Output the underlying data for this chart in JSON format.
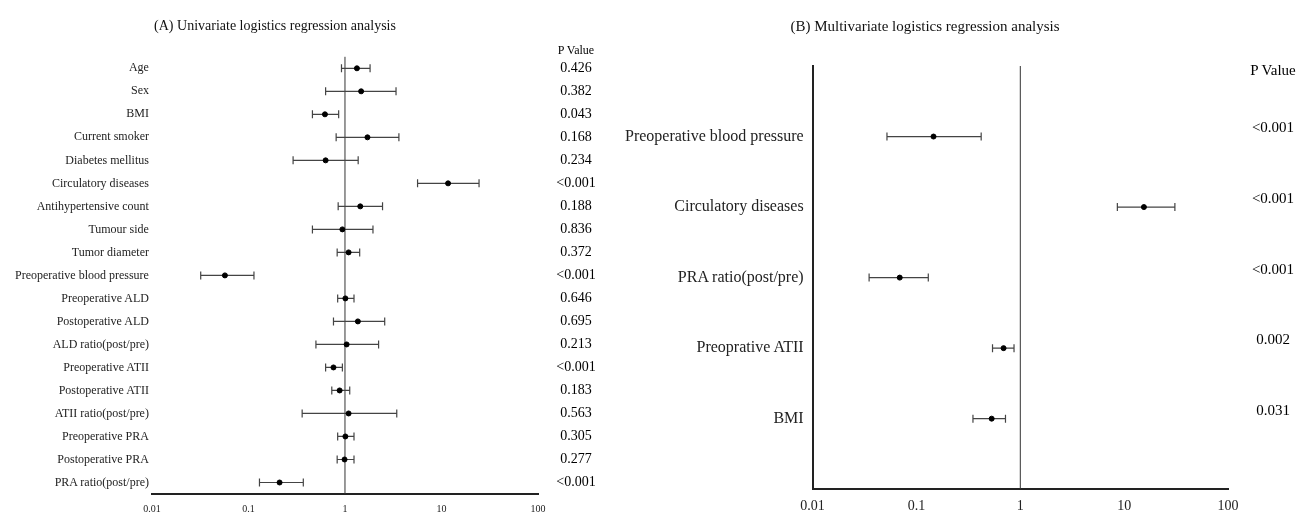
{
  "chart_data": [
    {
      "type": "scatter",
      "title": "(A) Univariate logistics regression analysis",
      "orientation": "horizontal",
      "log": "x",
      "marker": "circle",
      "color": "#000000",
      "categories": [
        "Age",
        "Sex",
        "BMI",
        "Current smoker",
        "Diabetes mellitus",
        "Circulatory diseases",
        "Antihypertensive count",
        "Tumour side",
        "Tumor diameter",
        "Preoperative blood pressure",
        "Preoperative ALD",
        "Postoperative ALD",
        "ALD ratio(post/pre)",
        "Preoperative ATII",
        "Postoperative ATII",
        "ATII ratio(post/pre)",
        "Preoperative PRA",
        "Postoperative PRA",
        "PRA ratio(post/pre)"
      ],
      "values": [
        1.33,
        1.47,
        0.62,
        1.71,
        0.63,
        11.7,
        1.44,
        0.94,
        1.09,
        0.057,
        1.01,
        1.36,
        1.04,
        0.76,
        0.88,
        1.09,
        1.01,
        0.99,
        0.21
      ],
      "errors": [
        [
          0.92,
          1.82
        ],
        [
          0.63,
          3.38
        ],
        [
          0.46,
          0.86
        ],
        [
          0.81,
          3.62
        ],
        [
          0.29,
          1.37
        ],
        [
          5.65,
          24.5
        ],
        [
          0.85,
          2.45
        ],
        [
          0.46,
          1.95
        ],
        [
          0.83,
          1.42
        ],
        [
          0.032,
          0.114
        ],
        [
          0.84,
          1.24
        ],
        [
          0.76,
          2.58
        ],
        [
          0.5,
          2.23
        ],
        [
          0.63,
          0.94
        ],
        [
          0.73,
          1.12
        ],
        [
          0.36,
          3.44
        ],
        [
          0.84,
          1.24
        ],
        [
          0.83,
          1.24
        ],
        [
          0.13,
          0.37
        ]
      ],
      "xlim": [
        0.01,
        100
      ],
      "xticks": [
        0.01,
        0.1,
        1,
        10,
        100
      ],
      "ref_lines": [
        {
          "axis": "x",
          "value": 1
        }
      ],
      "annotations": [
        "P Value",
        "0.426",
        "0.382",
        "0.043",
        "0.168",
        "0.234",
        "<0.001",
        "0.188",
        "0.836",
        "0.372",
        "<0.001",
        "0.646",
        "0.695",
        "0.213",
        "<0.001",
        "0.183",
        "0.563",
        "0.305",
        "0.277",
        "<0.001"
      ]
    },
    {
      "type": "scatter",
      "title": "(B) Multivariate logistics regression analysis",
      "orientation": "horizontal",
      "log": "x",
      "marker": "circle",
      "color": "#000000",
      "categories": [
        "Preoperative blood pressure",
        "Circulatory diseases",
        "PRA ratio(post/pre)",
        "Preoprative ATII",
        "BMI"
      ],
      "values": [
        0.146,
        15.5,
        0.069,
        0.69,
        0.53
      ],
      "errors": [
        [
          0.052,
          0.42
        ],
        [
          8.6,
          30.8
        ],
        [
          0.035,
          0.13
        ],
        [
          0.54,
          0.87
        ],
        [
          0.35,
          0.72
        ]
      ],
      "xlim": [
        0.01,
        100
      ],
      "xticks": [
        0.01,
        0.1,
        1,
        10,
        100
      ],
      "ref_lines": [
        {
          "axis": "x",
          "value": 1
        }
      ],
      "annotations": [
        "P Value",
        "<0.001",
        "<0.001",
        "<0.001",
        "0.002",
        "0.031"
      ]
    }
  ]
}
